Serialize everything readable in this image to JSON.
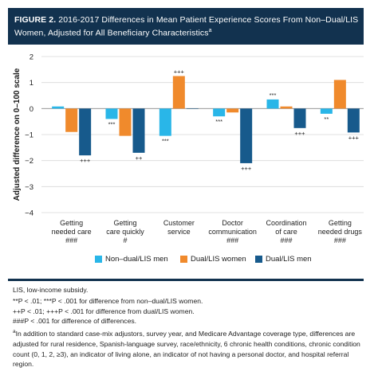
{
  "header": {
    "figure_label": "FIGURE 2.",
    "title": "2016-2017 Differences in Mean Patient Experience Scores From Non–Dual/LIS Women, Adjusted for All Beneficiary Characteristics",
    "title_superscript": "a"
  },
  "chart_data": {
    "type": "bar",
    "ylabel": "Adjusted difference on 0–100 scale",
    "ylim": [
      -4,
      2
    ],
    "yticks": [
      "2",
      "1",
      "0",
      "−1",
      "−2",
      "−3",
      "−4"
    ],
    "ytick_values": [
      2,
      1,
      0,
      -1,
      -2,
      -3,
      -4
    ],
    "grid": true,
    "legend_position": "bottom",
    "categories": [
      [
        "Getting",
        "needed care",
        "###"
      ],
      [
        "Getting",
        "care quickly",
        "#"
      ],
      [
        "Customer",
        "service"
      ],
      [
        "Doctor",
        "communication",
        "###"
      ],
      [
        "Coordination",
        "of care",
        "###"
      ],
      [
        "Getting",
        "needed drugs",
        "###"
      ]
    ],
    "series": [
      {
        "name": "Non–dual/LIS men",
        "color": "#29b6e8",
        "values": [
          0.08,
          -0.4,
          -1.05,
          -0.3,
          0.35,
          -0.2
        ],
        "labels": [
          "",
          "***",
          "***",
          "***",
          "***",
          "**"
        ]
      },
      {
        "name": "Dual/LIS women",
        "color": "#f08a2c",
        "values": [
          -0.9,
          -1.05,
          1.25,
          -0.15,
          0.08,
          1.1
        ],
        "labels": [
          "",
          "",
          "+++",
          "",
          "",
          ""
        ]
      },
      {
        "name": "Dual/LIS men",
        "color": "#175a8c",
        "values": [
          -1.8,
          -1.7,
          0.0,
          -2.1,
          -0.75,
          -0.92
        ],
        "labels": [
          "+++",
          "++",
          "",
          "+++",
          "+++",
          "+++"
        ]
      }
    ]
  },
  "notes": {
    "line1": "LIS, low-income subsidy.",
    "line2": "**P < .01; ***P < .001 for difference from non–dual/LIS women.",
    "line3": "++P < .01; +++P < .001 for difference from dual/LIS women.",
    "line4": "###P < .001 for difference of differences.",
    "footnote_mark": "a",
    "footnote": "In addition to standard case-mix adjustors, survey year, and Medicare Advantage coverage type, differences are adjusted for rural residence, Spanish-language survey, race/ethnicity, 6 chronic health conditions, chronic condition count (0, 1, 2, ≥3), an indicator of living alone, an indicator of not having a personal doctor, and hospital referral region."
  }
}
